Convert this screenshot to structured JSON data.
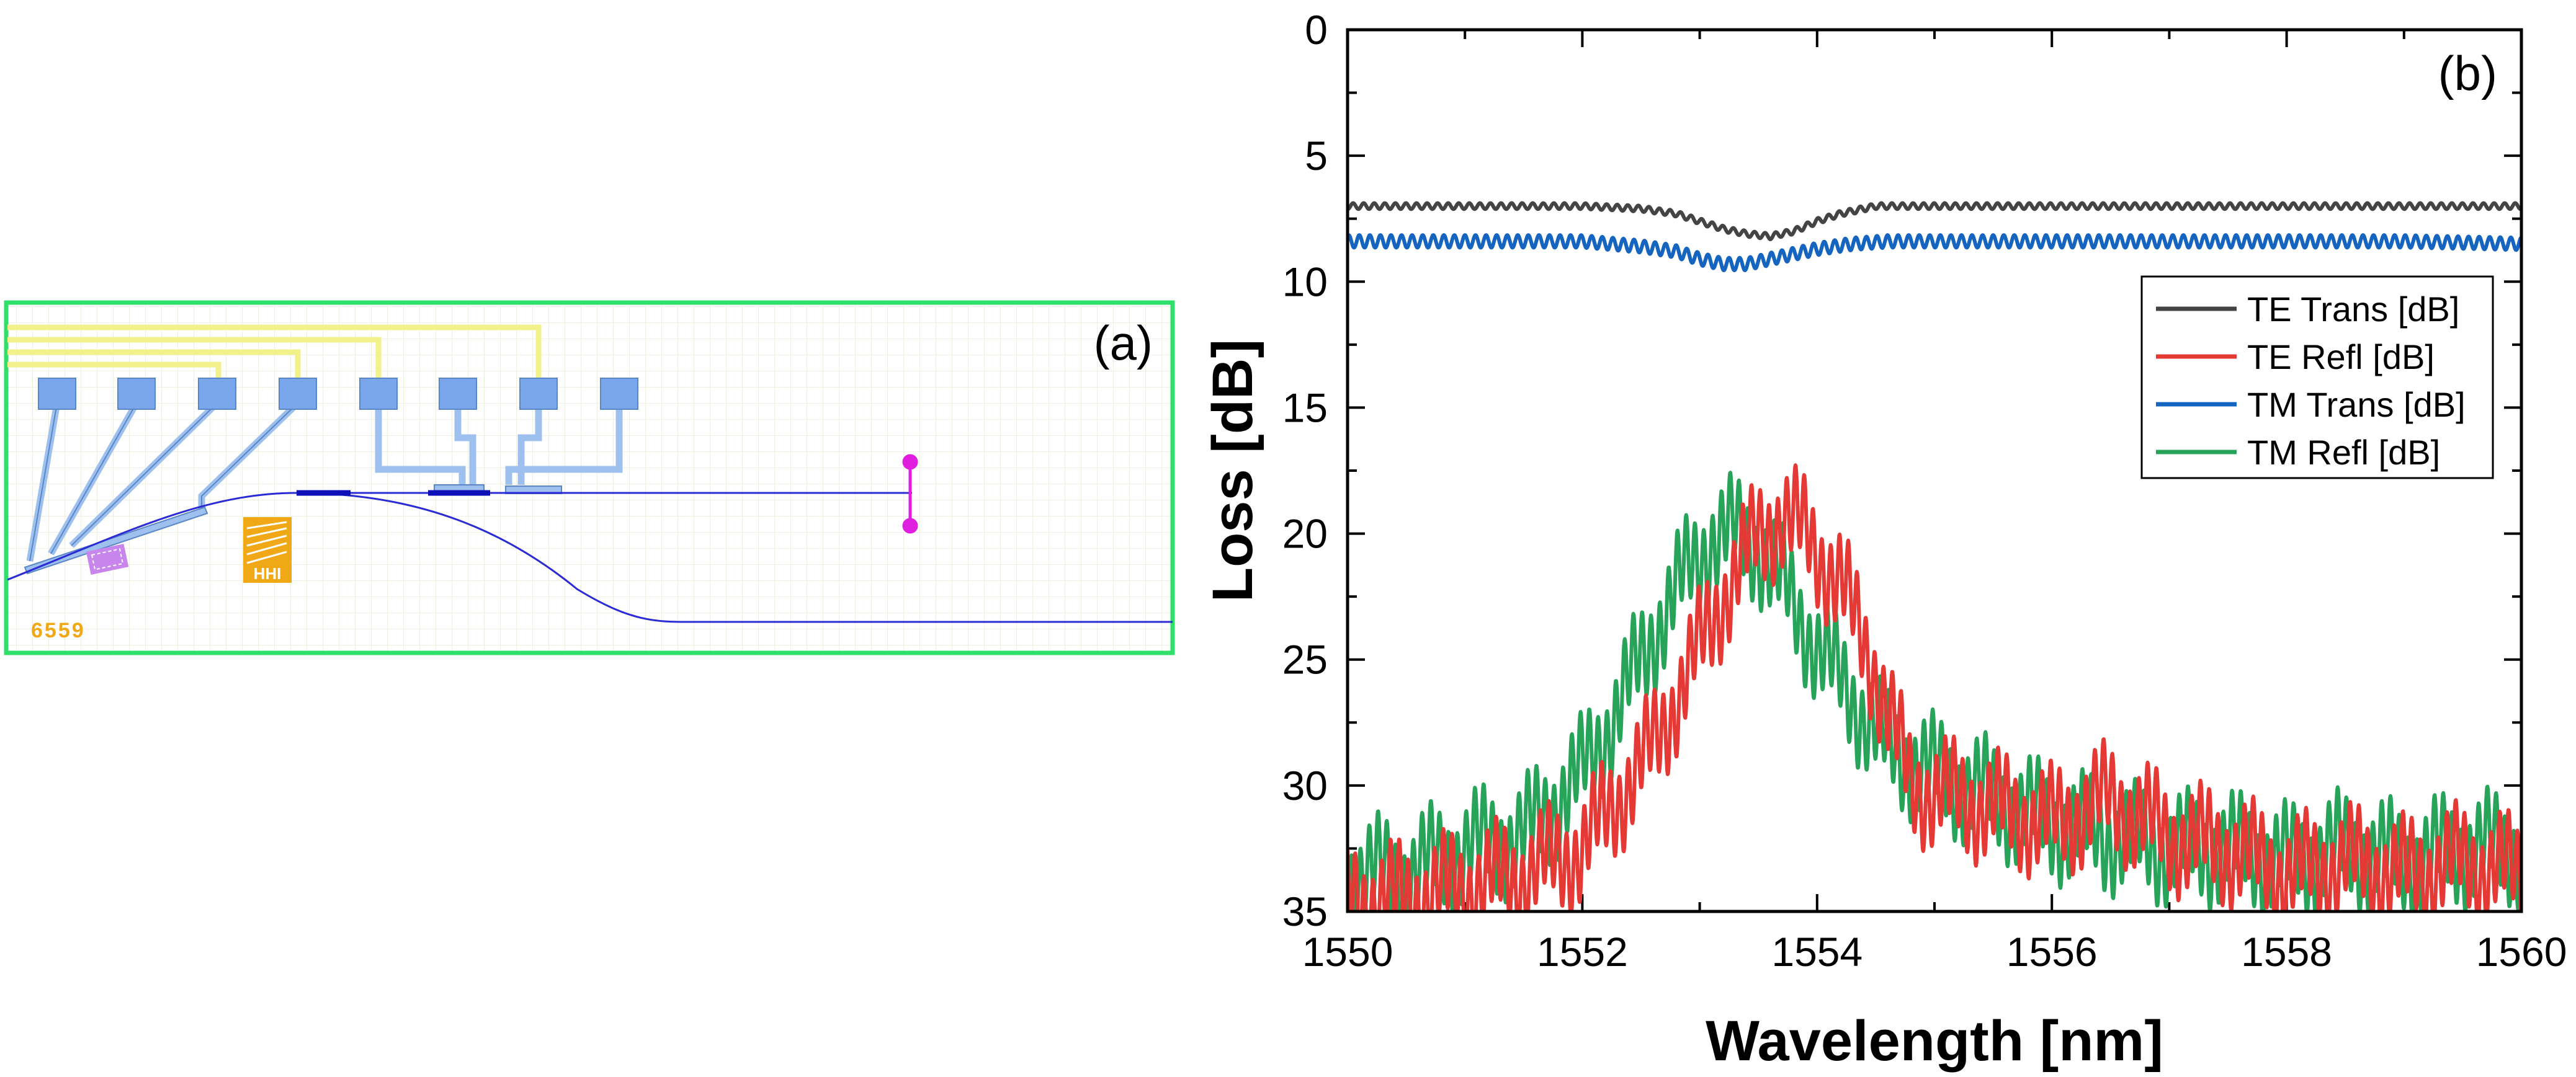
{
  "panel_a": {
    "label": "(a)",
    "chip_number": "6559",
    "logo_text": "HHI",
    "colors": {
      "border": "#2ee06a",
      "grid": "#eeeee2",
      "bus_lines": "#f2f28c",
      "pads": "#7aa7ec",
      "traces": "#9ec0ee",
      "waveguide": "#2b2bd6",
      "waveguide_section": "#1010b8",
      "magenta": "#e01ee0",
      "logo": "#f0a816",
      "purple_block": "#c885ec",
      "chip_number": "#f0a816"
    }
  },
  "chart_data": {
    "type": "line",
    "panel_label": "(b)",
    "xlabel": "Wavelength [nm]",
    "ylabel": "Loss [dB]",
    "xlim": [
      1550,
      1560
    ],
    "ylim": [
      0,
      35
    ],
    "y_inverted": true,
    "x_ticks": [
      1550,
      1552,
      1554,
      1556,
      1558,
      1560
    ],
    "y_ticks": [
      0,
      5,
      10,
      15,
      20,
      25,
      30,
      35
    ],
    "legend_position": "right, upper-middle",
    "grid": false,
    "series": [
      {
        "name": "TE Trans [dB]",
        "color": "#444444",
        "x": [
          1550,
          1551,
          1552,
          1552.5,
          1552.8,
          1553.0,
          1553.2,
          1553.4,
          1553.6,
          1553.8,
          1554.0,
          1554.2,
          1554.5,
          1555,
          1556,
          1557,
          1558,
          1559,
          1560
        ],
        "y": [
          7.0,
          7.0,
          7.0,
          7.1,
          7.3,
          7.6,
          7.9,
          8.1,
          8.2,
          8.0,
          7.6,
          7.3,
          7.0,
          7.0,
          7.0,
          7.0,
          7.0,
          7.0,
          7.0
        ]
      },
      {
        "name": "TE Refl [dB]",
        "color": "#e53935",
        "x": [
          1550,
          1550.5,
          1551,
          1551.5,
          1552,
          1552.3,
          1552.6,
          1552.9,
          1553.2,
          1553.5,
          1553.7,
          1553.9,
          1554.2,
          1554.5,
          1554.8,
          1555.2,
          1555.6,
          1556,
          1556.5,
          1557,
          1557.5,
          1558,
          1558.5,
          1559,
          1559.5,
          1560
        ],
        "y": [
          34.5,
          34.5,
          34.0,
          33.5,
          32.5,
          30.5,
          28.5,
          25.5,
          22.5,
          20.0,
          19.3,
          20.0,
          22.0,
          25.5,
          30.0,
          30.5,
          31.0,
          31.5,
          30.5,
          32.0,
          32.5,
          33.5,
          33.0,
          33.5,
          33.0,
          33.5
        ]
      },
      {
        "name": "TM Trans [dB]",
        "color": "#1565c0",
        "x": [
          1550,
          1551,
          1552,
          1552.5,
          1552.8,
          1553.0,
          1553.2,
          1553.4,
          1553.6,
          1553.8,
          1554.0,
          1554.3,
          1554.6,
          1555,
          1556,
          1557,
          1558,
          1559,
          1560
        ],
        "y": [
          8.4,
          8.4,
          8.4,
          8.6,
          8.8,
          9.1,
          9.3,
          9.3,
          9.1,
          8.9,
          8.7,
          8.5,
          8.4,
          8.4,
          8.4,
          8.4,
          8.4,
          8.4,
          8.5
        ]
      },
      {
        "name": "TM Refl [dB]",
        "color": "#27a35a",
        "x": [
          1550,
          1550.5,
          1551,
          1551.5,
          1552,
          1552.3,
          1552.6,
          1552.9,
          1553.1,
          1553.3,
          1553.5,
          1553.7,
          1554.0,
          1554.3,
          1554.6,
          1555.0,
          1555.5,
          1556,
          1556.5,
          1557,
          1557.5,
          1558,
          1558.5,
          1559,
          1559.5,
          1560
        ],
        "y": [
          33.5,
          33.5,
          32.5,
          32.0,
          29.5,
          27.0,
          24.0,
          21.5,
          20.2,
          20.0,
          20.5,
          22.0,
          24.5,
          26.5,
          28.5,
          29.5,
          30.5,
          31.5,
          32.0,
          32.5,
          32.5,
          33.0,
          32.5,
          33.0,
          32.5,
          32.5
        ]
      }
    ]
  }
}
